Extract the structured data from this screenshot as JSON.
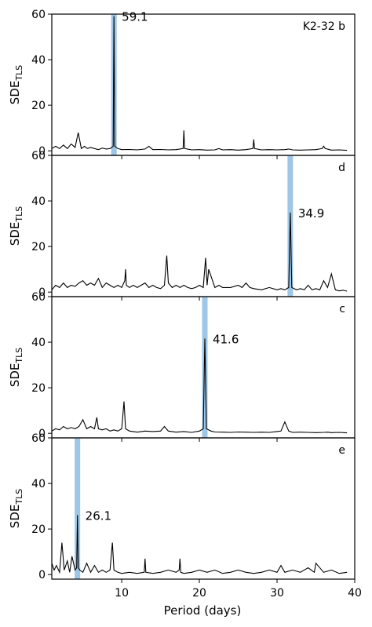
{
  "x_axis": {
    "label": "Period (days)",
    "ticks": [
      "10",
      "20",
      "30",
      "40"
    ]
  },
  "chart_data": [
    {
      "type": "line",
      "panel_label": "K2-32 b",
      "ylabel_main": "SDE",
      "ylabel_sub": "TLS",
      "xlim": [
        1,
        40
      ],
      "ylim": [
        -2,
        60
      ],
      "y_ticks": [
        "0",
        "20",
        "40",
        "60"
      ],
      "peak": {
        "period": 9.0,
        "sde": 59.1,
        "label": "59.1"
      },
      "highlight_color": "#9ec6e6",
      "series": [
        {
          "x": [
            1.0,
            1.5,
            2.0,
            2.5,
            3.0,
            3.5,
            4.0,
            4.4,
            4.8,
            5.2,
            5.6,
            6.0,
            6.5,
            7.0,
            7.5,
            8.0,
            8.5,
            8.9,
            9.0,
            9.1,
            9.5,
            10.0,
            11.0,
            12.0,
            13.0,
            13.5,
            14.0,
            15.0,
            16.0,
            17.0,
            17.9,
            18.0,
            18.1,
            19.0,
            20.0,
            21.0,
            22.0,
            22.5,
            23.0,
            24.0,
            25.0,
            26.0,
            26.9,
            27.0,
            27.1,
            28.0,
            29.0,
            30.0,
            31.0,
            31.5,
            32.0,
            33.0,
            34.0,
            35.0,
            35.8,
            36.0,
            36.2,
            37.0,
            38.0,
            39.0
          ],
          "y": [
            1.0,
            2.0,
            1.0,
            2.5,
            1.0,
            3.0,
            1.5,
            8.0,
            1.0,
            2.0,
            1.0,
            1.5,
            1.0,
            0.5,
            1.2,
            0.8,
            1.0,
            2.0,
            59.1,
            2.0,
            1.0,
            0.5,
            0.6,
            0.4,
            0.8,
            2.0,
            0.5,
            0.6,
            0.4,
            0.5,
            1.0,
            9.0,
            1.0,
            0.4,
            0.5,
            0.3,
            0.4,
            1.0,
            0.4,
            0.5,
            0.3,
            0.5,
            1.0,
            5.0,
            1.0,
            0.4,
            0.5,
            0.4,
            0.5,
            0.8,
            0.4,
            0.3,
            0.4,
            0.5,
            1.0,
            2.0,
            1.0,
            0.3,
            0.4,
            0.2
          ]
        }
      ]
    },
    {
      "type": "line",
      "panel_label": "d",
      "ylabel_main": "SDE",
      "ylabel_sub": "TLS",
      "xlim": [
        1,
        40
      ],
      "ylim": [
        -2,
        60
      ],
      "y_ticks": [
        "0",
        "20",
        "40",
        "60"
      ],
      "peak": {
        "period": 31.7,
        "sde": 34.9,
        "label": "34.9"
      },
      "highlight_color": "#9ec6e6",
      "series": [
        {
          "x": [
            1.0,
            1.5,
            2.0,
            2.5,
            3.0,
            3.5,
            4.0,
            4.5,
            5.0,
            5.5,
            6.0,
            6.5,
            7.0,
            7.5,
            8.0,
            8.5,
            9.0,
            9.5,
            10.0,
            10.4,
            10.5,
            10.6,
            11.0,
            11.5,
            12.0,
            12.5,
            13.0,
            13.5,
            14.0,
            14.5,
            15.0,
            15.5,
            15.8,
            16.0,
            16.5,
            17.0,
            17.5,
            18.0,
            18.5,
            19.0,
            19.5,
            20.0,
            20.5,
            20.8,
            21.0,
            21.2,
            22.0,
            22.5,
            23.0,
            24.0,
            25.0,
            25.5,
            26.0,
            26.5,
            27.0,
            28.0,
            29.0,
            30.0,
            30.5,
            31.0,
            31.5,
            31.7,
            31.9,
            32.5,
            33.0,
            33.5,
            34.0,
            34.5,
            35.0,
            35.5,
            36.0,
            36.5,
            37.0,
            37.5,
            38.0,
            38.5,
            39.0
          ],
          "y": [
            1.0,
            3.0,
            2.0,
            4.0,
            2.0,
            3.0,
            2.5,
            4.0,
            5.0,
            3.0,
            4.0,
            3.0,
            6.0,
            2.0,
            4.0,
            3.0,
            2.0,
            3.0,
            2.0,
            5.0,
            10.0,
            3.0,
            2.0,
            3.0,
            2.0,
            3.0,
            4.0,
            2.0,
            3.0,
            2.0,
            1.5,
            3.0,
            16.0,
            4.0,
            2.0,
            3.0,
            2.0,
            3.0,
            2.0,
            1.5,
            2.0,
            3.0,
            2.0,
            15.0,
            3.0,
            10.0,
            2.0,
            3.0,
            2.0,
            2.0,
            3.0,
            2.0,
            4.0,
            2.0,
            1.5,
            1.0,
            2.0,
            1.0,
            1.5,
            1.0,
            2.0,
            34.9,
            2.0,
            1.0,
            1.5,
            1.0,
            3.0,
            1.0,
            1.5,
            1.0,
            5.0,
            2.0,
            8.0,
            1.0,
            0.5,
            0.8,
            0.4
          ]
        }
      ]
    },
    {
      "type": "line",
      "panel_label": "c",
      "ylabel_main": "SDE",
      "ylabel_sub": "TLS",
      "xlim": [
        1,
        40
      ],
      "ylim": [
        -2,
        60
      ],
      "y_ticks": [
        "0",
        "20",
        "40",
        "60"
      ],
      "peak": {
        "period": 20.7,
        "sde": 41.6,
        "label": "41.6"
      },
      "highlight_color": "#9ec6e6",
      "series": [
        {
          "x": [
            1.0,
            1.5,
            2.0,
            2.5,
            3.0,
            3.5,
            4.0,
            4.5,
            5.0,
            5.5,
            6.0,
            6.5,
            6.8,
            7.0,
            7.5,
            8.0,
            8.5,
            9.0,
            9.5,
            10.0,
            10.3,
            10.5,
            11.0,
            12.0,
            13.0,
            14.0,
            15.0,
            15.5,
            16.0,
            17.0,
            18.0,
            19.0,
            20.0,
            20.5,
            20.7,
            20.9,
            21.5,
            22.0,
            23.0,
            24.0,
            25.0,
            26.0,
            27.0,
            28.0,
            29.0,
            30.0,
            30.5,
            31.0,
            31.5,
            32.0,
            33.0,
            34.0,
            35.0,
            36.0,
            36.5,
            37.0,
            38.0,
            39.0
          ],
          "y": [
            1.0,
            2.0,
            1.5,
            3.0,
            2.0,
            2.5,
            2.0,
            3.0,
            6.0,
            2.0,
            3.0,
            2.0,
            7.0,
            2.0,
            1.5,
            2.0,
            1.0,
            1.5,
            1.0,
            2.0,
            14.0,
            2.0,
            1.0,
            0.5,
            1.0,
            0.8,
            1.0,
            3.0,
            1.0,
            0.5,
            0.8,
            0.4,
            1.0,
            2.0,
            41.6,
            2.0,
            1.0,
            0.6,
            0.5,
            0.4,
            0.6,
            0.5,
            0.4,
            0.5,
            0.4,
            0.8,
            1.0,
            5.0,
            1.0,
            0.4,
            0.5,
            0.4,
            0.3,
            0.4,
            0.5,
            0.3,
            0.4,
            0.2
          ]
        }
      ]
    },
    {
      "type": "line",
      "panel_label": "e",
      "ylabel_main": "SDE",
      "ylabel_sub": "TLS",
      "xlim": [
        1,
        40
      ],
      "ylim": [
        -2,
        60
      ],
      "y_ticks": [
        "0",
        "20",
        "40",
        "60"
      ],
      "peak": {
        "period": 4.3,
        "sde": 26.1,
        "label": "26.1"
      },
      "highlight_color": "#9ec6e6",
      "series": [
        {
          "x": [
            1.0,
            1.3,
            1.6,
            2.0,
            2.3,
            2.6,
            3.0,
            3.3,
            3.6,
            4.0,
            4.2,
            4.3,
            4.4,
            4.6,
            5.0,
            5.5,
            6.0,
            6.5,
            7.0,
            7.5,
            8.0,
            8.5,
            8.8,
            9.0,
            9.5,
            10.0,
            11.0,
            12.0,
            12.9,
            13.0,
            13.1,
            14.0,
            15.0,
            16.0,
            17.0,
            17.4,
            17.5,
            17.6,
            18.0,
            19.0,
            20.0,
            21.0,
            22.0,
            23.0,
            24.0,
            25.0,
            26.0,
            27.0,
            28.0,
            29.0,
            30.0,
            30.5,
            31.0,
            32.0,
            33.0,
            34.0,
            34.8,
            35.0,
            36.0,
            37.0,
            38.0,
            39.0
          ],
          "y": [
            5.0,
            2.0,
            4.0,
            1.0,
            14.0,
            2.0,
            6.0,
            1.0,
            8.0,
            2.0,
            3.0,
            26.1,
            3.0,
            2.0,
            1.0,
            5.0,
            1.0,
            4.0,
            1.0,
            2.0,
            1.0,
            2.0,
            14.0,
            2.0,
            1.0,
            0.5,
            1.0,
            0.5,
            1.0,
            7.0,
            1.0,
            0.5,
            1.0,
            2.0,
            1.0,
            2.0,
            7.0,
            1.0,
            0.5,
            1.0,
            2.0,
            1.0,
            2.0,
            0.5,
            1.0,
            2.0,
            1.0,
            0.5,
            1.0,
            2.0,
            1.0,
            4.0,
            1.0,
            2.0,
            1.0,
            3.0,
            1.0,
            5.0,
            1.0,
            2.0,
            0.5,
            1.0
          ]
        }
      ]
    }
  ]
}
